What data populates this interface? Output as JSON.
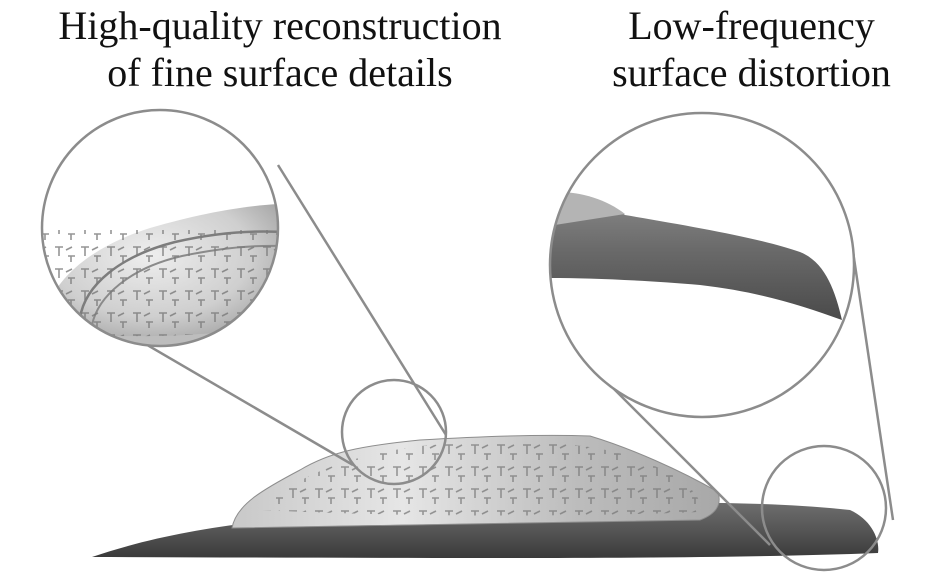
{
  "captions": {
    "left": {
      "line1": "High-quality reconstruction",
      "line2": "of fine surface details"
    },
    "right": {
      "line1": "Low-frequency",
      "line2": "surface distortion"
    }
  },
  "colors": {
    "callout_stroke": "#8c8c8c",
    "surface_dark": "#555555",
    "tablet_light": "#d8d8d8",
    "text": "#111111"
  }
}
